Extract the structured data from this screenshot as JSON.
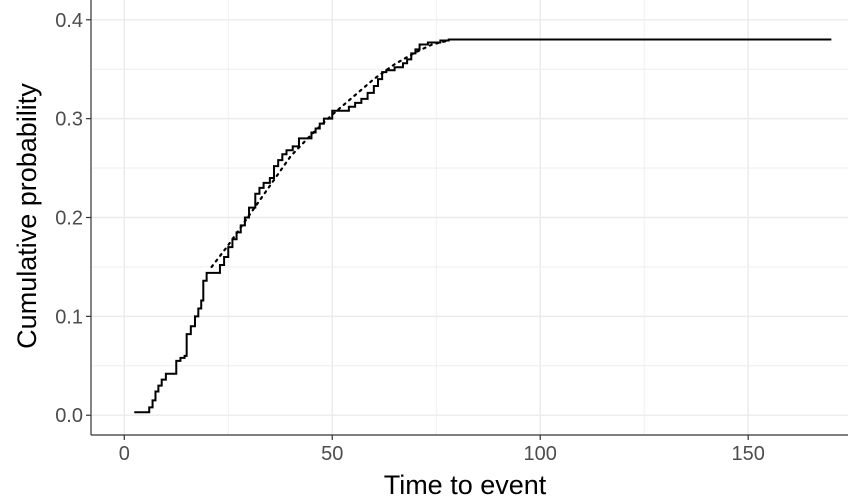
{
  "chart_data": {
    "type": "line",
    "title": "",
    "xlabel": "Time to event",
    "ylabel": "Cumulative probability",
    "xlim": [
      -8,
      174
    ],
    "ylim": [
      -0.02,
      0.42
    ],
    "grid": true,
    "x_ticks": [
      0,
      50,
      100,
      150
    ],
    "x_tick_labels": [
      "0",
      "50",
      "100",
      "150"
    ],
    "y_ticks": [
      0.0,
      0.1,
      0.2,
      0.3,
      0.4
    ],
    "y_tick_labels": [
      "0.0",
      "0.1",
      "0.2",
      "0.3",
      "0.4"
    ],
    "colors": {
      "line": "#000000",
      "grid": "#ebebeb",
      "axis": "#333333"
    },
    "series": [
      {
        "style": "solid-step",
        "points": [
          [
            2.4,
            0.003
          ],
          [
            6.0,
            0.003
          ],
          [
            6.0,
            0.008
          ],
          [
            6.8,
            0.008
          ],
          [
            6.8,
            0.015
          ],
          [
            7.5,
            0.015
          ],
          [
            7.5,
            0.024
          ],
          [
            8.2,
            0.024
          ],
          [
            8.2,
            0.03
          ],
          [
            9.0,
            0.03
          ],
          [
            9.0,
            0.036
          ],
          [
            10.0,
            0.036
          ],
          [
            10.0,
            0.042
          ],
          [
            12.5,
            0.042
          ],
          [
            12.5,
            0.055
          ],
          [
            13.5,
            0.055
          ],
          [
            13.5,
            0.058
          ],
          [
            14.5,
            0.058
          ],
          [
            14.5,
            0.06
          ],
          [
            15.0,
            0.06
          ],
          [
            15.0,
            0.082
          ],
          [
            16.0,
            0.082
          ],
          [
            16.0,
            0.09
          ],
          [
            17.0,
            0.09
          ],
          [
            17.0,
            0.1
          ],
          [
            17.8,
            0.1
          ],
          [
            17.8,
            0.108
          ],
          [
            18.5,
            0.108
          ],
          [
            18.5,
            0.116
          ],
          [
            19.0,
            0.116
          ],
          [
            19.0,
            0.136
          ],
          [
            19.8,
            0.136
          ],
          [
            19.8,
            0.144
          ],
          [
            23.0,
            0.144
          ],
          [
            23.0,
            0.152
          ],
          [
            24.0,
            0.152
          ],
          [
            24.0,
            0.16
          ],
          [
            25.0,
            0.16
          ],
          [
            25.0,
            0.17
          ],
          [
            26.0,
            0.17
          ],
          [
            26.0,
            0.178
          ],
          [
            27.0,
            0.178
          ],
          [
            27.0,
            0.185
          ],
          [
            28.0,
            0.185
          ],
          [
            28.0,
            0.192
          ],
          [
            29.0,
            0.192
          ],
          [
            29.0,
            0.2
          ],
          [
            30.0,
            0.2
          ],
          [
            30.0,
            0.21
          ],
          [
            31.5,
            0.21
          ],
          [
            31.5,
            0.224
          ],
          [
            32.5,
            0.224
          ],
          [
            32.5,
            0.23
          ],
          [
            33.5,
            0.23
          ],
          [
            33.5,
            0.235
          ],
          [
            35.0,
            0.235
          ],
          [
            35.0,
            0.24
          ],
          [
            36.0,
            0.24
          ],
          [
            36.0,
            0.252
          ],
          [
            37.0,
            0.252
          ],
          [
            37.0,
            0.258
          ],
          [
            38.0,
            0.258
          ],
          [
            38.0,
            0.264
          ],
          [
            39.0,
            0.264
          ],
          [
            39.0,
            0.268
          ],
          [
            40.5,
            0.268
          ],
          [
            40.5,
            0.272
          ],
          [
            42.0,
            0.272
          ],
          [
            42.0,
            0.28
          ],
          [
            45.0,
            0.28
          ],
          [
            45.0,
            0.286
          ],
          [
            46.0,
            0.286
          ],
          [
            46.0,
            0.29
          ],
          [
            47.0,
            0.29
          ],
          [
            47.0,
            0.295
          ],
          [
            48.0,
            0.295
          ],
          [
            48.0,
            0.3
          ],
          [
            50.0,
            0.3
          ],
          [
            50.0,
            0.308
          ],
          [
            54.0,
            0.308
          ],
          [
            54.0,
            0.312
          ],
          [
            55.5,
            0.312
          ],
          [
            55.5,
            0.316
          ],
          [
            57.0,
            0.316
          ],
          [
            57.0,
            0.32
          ],
          [
            58.5,
            0.32
          ],
          [
            58.5,
            0.326
          ],
          [
            60.0,
            0.326
          ],
          [
            60.0,
            0.333
          ],
          [
            61.0,
            0.333
          ],
          [
            61.0,
            0.34
          ],
          [
            62.0,
            0.34
          ],
          [
            62.0,
            0.347
          ],
          [
            63.0,
            0.347
          ],
          [
            63.0,
            0.349
          ],
          [
            65.0,
            0.349
          ],
          [
            65.0,
            0.352
          ],
          [
            67.0,
            0.352
          ],
          [
            67.0,
            0.356
          ],
          [
            68.0,
            0.356
          ],
          [
            68.0,
            0.36
          ],
          [
            69.0,
            0.36
          ],
          [
            69.0,
            0.366
          ],
          [
            70.0,
            0.366
          ],
          [
            70.0,
            0.37
          ],
          [
            71.0,
            0.37
          ],
          [
            71.0,
            0.375
          ],
          [
            73.0,
            0.375
          ],
          [
            73.0,
            0.377
          ],
          [
            76.0,
            0.377
          ],
          [
            76.0,
            0.379
          ],
          [
            78.0,
            0.379
          ],
          [
            78.0,
            0.38
          ],
          [
            170.0,
            0.38
          ]
        ]
      },
      {
        "style": "dotted",
        "points": [
          [
            21.0,
            0.15
          ],
          [
            25.0,
            0.172
          ],
          [
            30.0,
            0.202
          ],
          [
            35.0,
            0.232
          ],
          [
            40.0,
            0.262
          ],
          [
            45.0,
            0.284
          ],
          [
            50.0,
            0.304
          ],
          [
            55.0,
            0.322
          ],
          [
            60.0,
            0.34
          ],
          [
            65.0,
            0.355
          ],
          [
            70.0,
            0.367
          ],
          [
            74.0,
            0.375
          ],
          [
            78.0,
            0.379
          ]
        ]
      }
    ]
  }
}
